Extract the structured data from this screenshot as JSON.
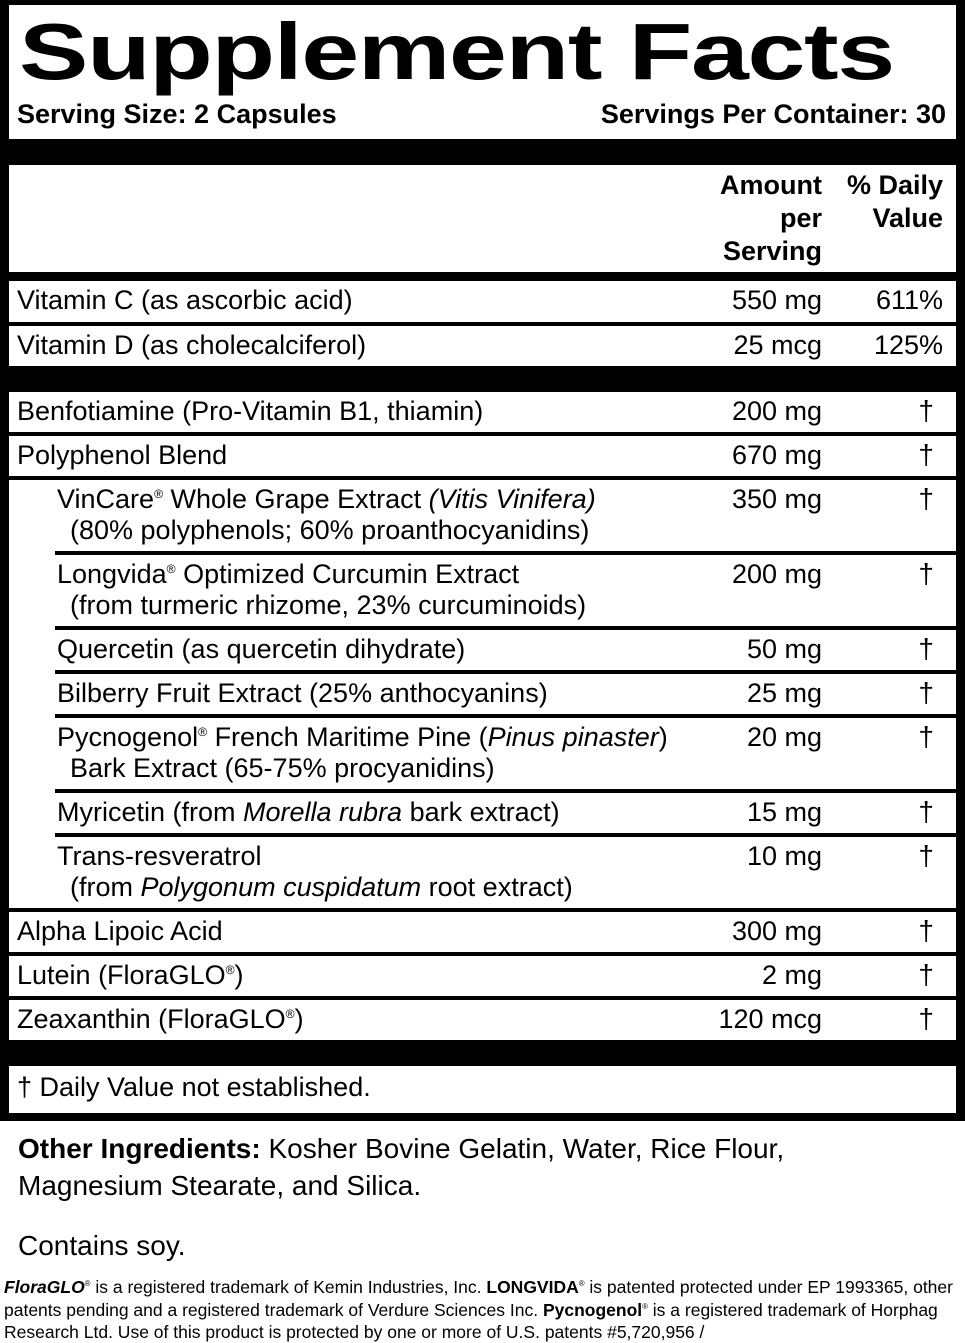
{
  "title": "Supplement Facts",
  "serving_size": "Serving Size: 2 Capsules",
  "servings_per_container": "Servings Per Container: 30",
  "column_headers": {
    "amount": "Amount per\nServing",
    "daily_value": "% Daily\nValue"
  },
  "rows": [
    {
      "segs": [
        [
          "Vitamin C (as ascorbic acid)",
          ""
        ]
      ],
      "amount": "550 mg",
      "dv": "611%",
      "indent": false,
      "sep": "full"
    },
    {
      "segs": [
        [
          "Vitamin D (as cholecalciferol)",
          ""
        ]
      ],
      "amount": "25 mcg",
      "dv": "125%",
      "indent": false,
      "sep": "bar"
    },
    {
      "segs": [
        [
          "Benfotiamine (Pro-Vitamin B1, thiamin)",
          ""
        ]
      ],
      "amount": "200 mg",
      "dv": "†",
      "indent": false,
      "sep": "full"
    },
    {
      "segs": [
        [
          "Polyphenol Blend",
          ""
        ]
      ],
      "amount": "670 mg",
      "dv": "†",
      "indent": false,
      "sep": "full"
    },
    {
      "segs": [
        [
          "VinCare",
          ""
        ],
        [
          "®",
          "sup"
        ],
        [
          " Whole Grape Extract ",
          ""
        ],
        [
          "(Vitis Vinifera)",
          "i"
        ]
      ],
      "line2": [
        [
          "(80% polyphenols; 60% proanthocyanidins)",
          ""
        ]
      ],
      "amount": "350 mg",
      "dv": "†",
      "indent": true,
      "sep": "indent"
    },
    {
      "segs": [
        [
          "Longvida",
          ""
        ],
        [
          "®",
          "sup"
        ],
        [
          " Optimized Curcumin Extract",
          ""
        ]
      ],
      "line2": [
        [
          "(from turmeric rhizome, 23% curcuminoids)",
          ""
        ]
      ],
      "amount": "200 mg",
      "dv": "†",
      "indent": true,
      "sep": "indent"
    },
    {
      "segs": [
        [
          "Quercetin (as quercetin dihydrate)",
          ""
        ]
      ],
      "amount": "50 mg",
      "dv": "†",
      "indent": true,
      "sep": "indent"
    },
    {
      "segs": [
        [
          "Bilberry Fruit Extract (25% anthocyanins)",
          ""
        ]
      ],
      "amount": "25 mg",
      "dv": "†",
      "indent": true,
      "sep": "indent"
    },
    {
      "segs": [
        [
          "Pycnogenol",
          ""
        ],
        [
          "®",
          "sup"
        ],
        [
          " French Maritime Pine (",
          ""
        ],
        [
          "Pinus pinaster",
          "i"
        ],
        [
          ")",
          ""
        ]
      ],
      "line2": [
        [
          "Bark Extract (65-75% procyanidins)",
          ""
        ]
      ],
      "amount": "20 mg",
      "dv": "†",
      "indent": true,
      "sep": "indent"
    },
    {
      "segs": [
        [
          "Myricetin (from ",
          ""
        ],
        [
          "Morella rubra",
          "i"
        ],
        [
          " bark extract)",
          ""
        ]
      ],
      "amount": "15 mg",
      "dv": "†",
      "indent": true,
      "sep": "indent"
    },
    {
      "segs": [
        [
          "Trans-resveratrol",
          ""
        ]
      ],
      "line2": [
        [
          "(from ",
          ""
        ],
        [
          "Polygonum cuspidatum",
          "i"
        ],
        [
          " root extract)",
          ""
        ]
      ],
      "amount": "10 mg",
      "dv": "†",
      "indent": true,
      "sep": "full"
    },
    {
      "segs": [
        [
          "Alpha Lipoic Acid",
          ""
        ]
      ],
      "amount": "300 mg",
      "dv": "†",
      "indent": false,
      "sep": "full"
    },
    {
      "segs": [
        [
          "Lutein (FloraGLO",
          ""
        ],
        [
          "®",
          "sup"
        ],
        [
          ")",
          ""
        ]
      ],
      "amount": "2 mg",
      "dv": "†",
      "indent": false,
      "sep": "full"
    },
    {
      "segs": [
        [
          "Zeaxanthin (FloraGLO",
          ""
        ],
        [
          "®",
          "sup"
        ],
        [
          ")",
          ""
        ]
      ],
      "amount": "120 mcg",
      "dv": "†",
      "indent": false,
      "sep": "bar"
    }
  ],
  "daily_value_note": "† Daily Value not established.",
  "other_ingredients": {
    "label": "Other Ingredients:",
    "text": " Kosher Bovine Gelatin, Water, Rice Flour, Magnesium Stearate, and Silica."
  },
  "allergen_note": "Contains soy.",
  "footnote_segs": [
    [
      "FloraGLO",
      "bi"
    ],
    [
      "®",
      "sup"
    ],
    [
      " is a registered trademark of Kemin Industries, Inc. ",
      ""
    ],
    [
      "LONGVIDA",
      "b"
    ],
    [
      "®",
      "sup"
    ],
    [
      " is patented protected under EP 1993365, other patents pending and a registered trademark of Verdure Sciences Inc. ",
      ""
    ],
    [
      "Pycnogenol",
      "b"
    ],
    [
      "®",
      "sup"
    ],
    [
      " is a registered trademark of Horphag Research Ltd. Use of this product is protected by one or more of U.S. patents #5,720,956 /",
      ""
    ]
  ],
  "colors": {
    "ink": "#000000",
    "paper": "#ffffff"
  }
}
